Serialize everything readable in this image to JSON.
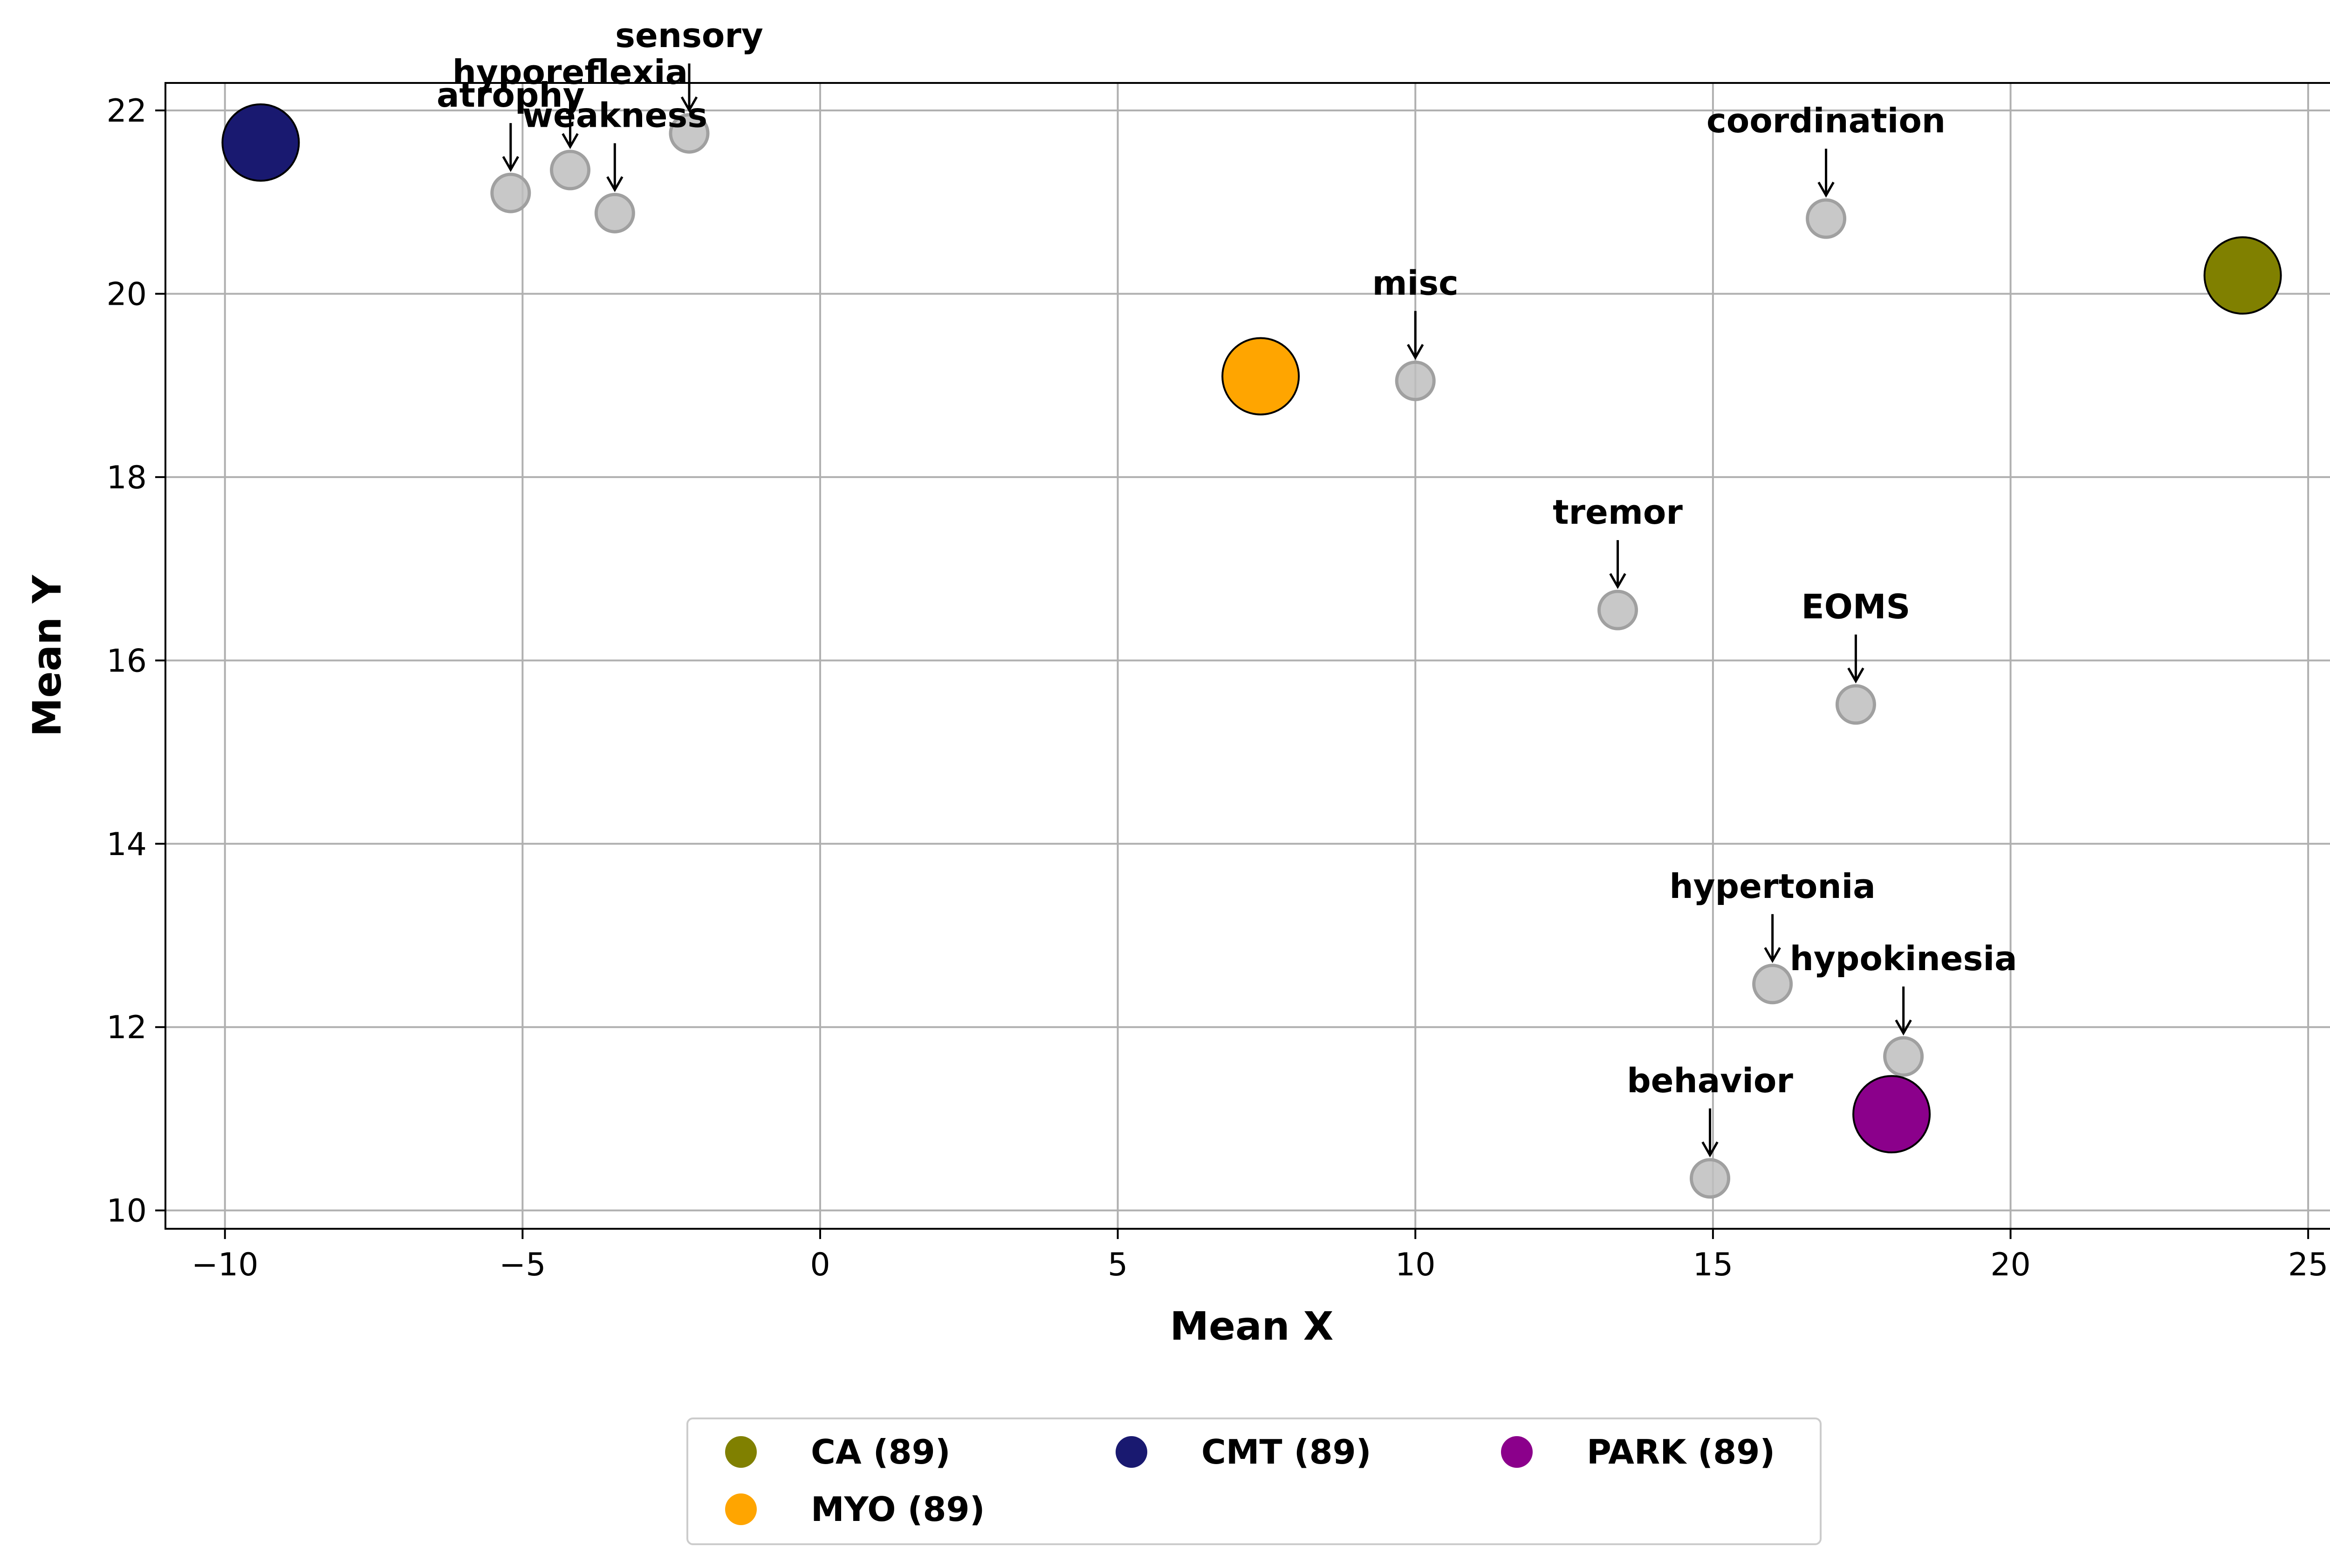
{
  "chart_data": {
    "type": "scatter",
    "xlabel": "Mean X",
    "ylabel": "Mean Y",
    "xlim": [
      -11,
      25.5
    ],
    "ylim": [
      9.8,
      22.3
    ],
    "xticks": [
      -10,
      -5,
      0,
      5,
      10,
      15,
      20,
      25
    ],
    "xtick_labels": [
      "−10",
      "−5",
      "0",
      "5",
      "10",
      "15",
      "20",
      "25"
    ],
    "yticks": [
      10,
      12,
      14,
      16,
      18,
      20,
      22
    ],
    "ytick_labels": [
      "10",
      "12",
      "14",
      "16",
      "18",
      "20",
      "22"
    ],
    "grid": true,
    "legend_position": "below plot, center",
    "groups": [
      {
        "name": "CA (89)",
        "x": 23.9,
        "y": 20.2,
        "color": "#808000"
      },
      {
        "name": "CMT (89)",
        "x": -9.4,
        "y": 21.65,
        "color": "#191970"
      },
      {
        "name": "PARK (89)",
        "x": 18.0,
        "y": 11.05,
        "color": "#8b008b"
      },
      {
        "name": "MYO (89)",
        "x": 7.4,
        "y": 19.1,
        "color": "#ffa500"
      }
    ],
    "symptoms": [
      {
        "label": "atrophy",
        "x": -5.2,
        "y": 21.1
      },
      {
        "label": "hyporeflexia",
        "x": -4.2,
        "y": 21.35
      },
      {
        "label": "sensory",
        "x": -2.2,
        "y": 21.75
      },
      {
        "label": "weakness",
        "x": -3.45,
        "y": 20.88
      },
      {
        "label": "coordination",
        "x": 16.9,
        "y": 20.82
      },
      {
        "label": "misc",
        "x": 10.0,
        "y": 19.05
      },
      {
        "label": "tremor",
        "x": 13.4,
        "y": 16.55
      },
      {
        "label": "EOMS",
        "x": 17.4,
        "y": 15.52
      },
      {
        "label": "hypertonia",
        "x": 16.0,
        "y": 12.47
      },
      {
        "label": "hypokinesia",
        "x": 18.2,
        "y": 11.68
      },
      {
        "label": "behavior",
        "x": 14.95,
        "y": 10.35
      }
    ],
    "symptom_color": "#bebebe",
    "legend": [
      {
        "name": "CA (89)",
        "color": "#808000"
      },
      {
        "name": "CMT (89)",
        "color": "#191970"
      },
      {
        "name": "PARK (89)",
        "color": "#8b008b"
      },
      {
        "name": "MYO (89)",
        "color": "#ffa500"
      }
    ]
  }
}
